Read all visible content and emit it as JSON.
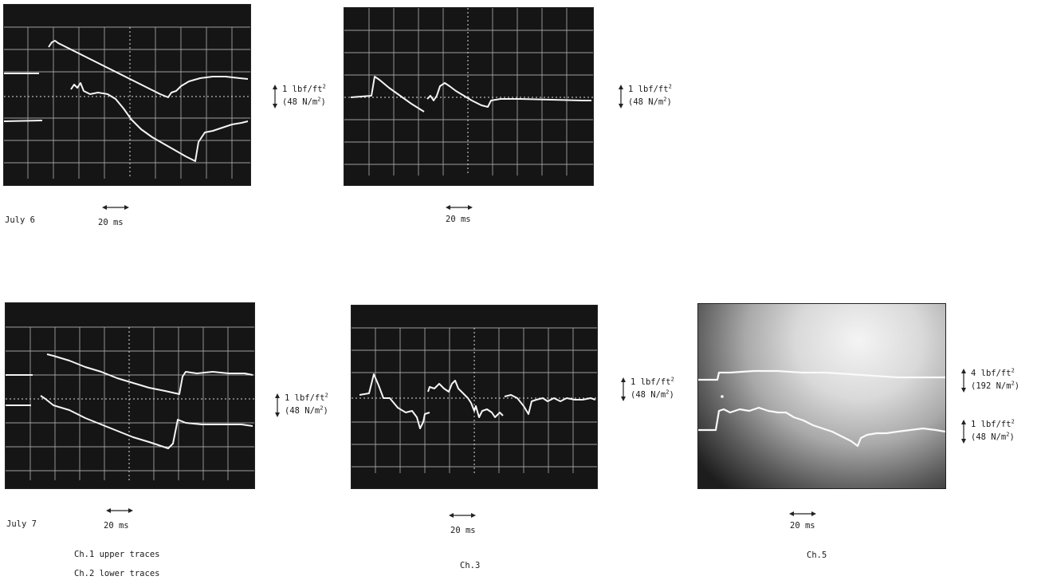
{
  "dates": {
    "row1": "July 6",
    "row2": "July 7"
  },
  "time_scale": "20 ms",
  "scales": {
    "lbf_1": "1 lbf/ft",
    "nm_48": "(48 N/m",
    "lbf_4": "4 lbf/ft",
    "nm_192": "(192 N/m",
    "sup": "2",
    "close": ")"
  },
  "captions": {
    "ch1": "Ch.1 upper traces",
    "ch2": "Ch.2 lower traces",
    "ch3": "Ch.3",
    "ch5": "Ch.5"
  },
  "colors": {
    "screen": "#151515",
    "grid": "#d8d8d8",
    "trace": "#f2f2f2"
  }
}
